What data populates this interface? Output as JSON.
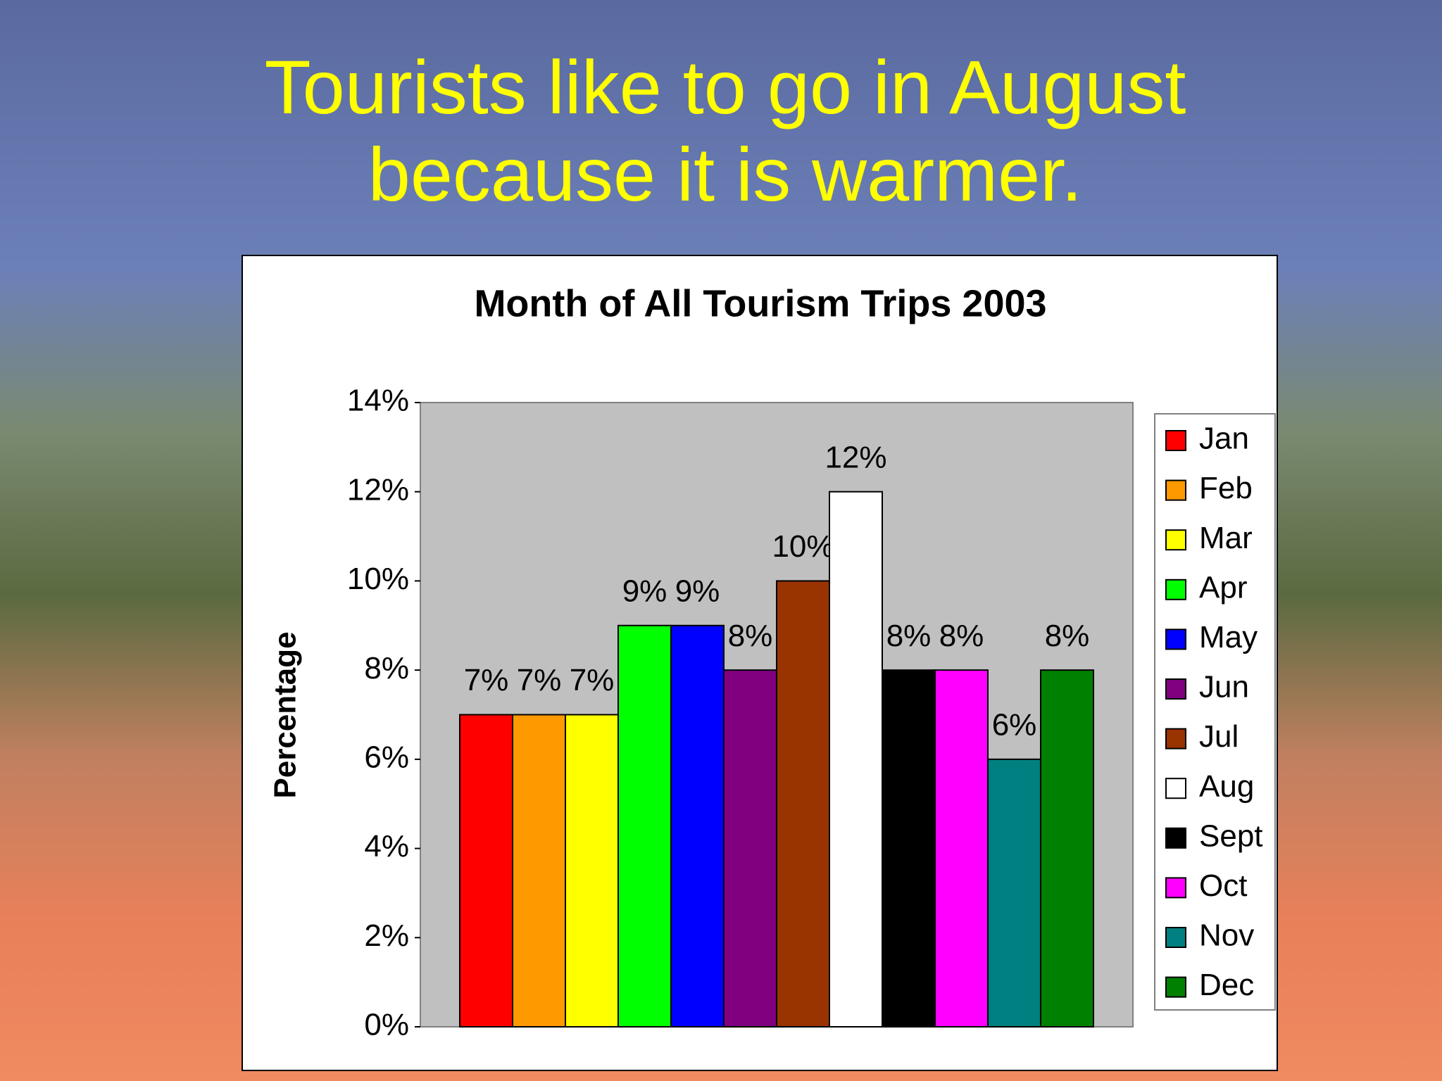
{
  "slide_title": "Tourists like to go in August because it is warmer.",
  "chart_data": {
    "type": "bar",
    "title": "Month of All Tourism Trips 2003",
    "y_label": "Percentage",
    "categories": [
      "Jan",
      "Feb",
      "Mar",
      "Apr",
      "May",
      "Jun",
      "Jul",
      "Aug",
      "Sept",
      "Oct",
      "Nov",
      "Dec"
    ],
    "values": [
      7,
      7,
      7,
      9,
      9,
      8,
      10,
      12,
      8,
      8,
      6,
      8
    ],
    "value_labels": [
      "7%",
      "7%",
      "7%",
      "9%",
      "9%",
      "8%",
      "10%",
      "12%",
      "8%",
      "8%",
      "6%",
      "8%"
    ],
    "colors": [
      "#ff0000",
      "#ff9900",
      "#ffff00",
      "#00ff00",
      "#0000ff",
      "#800080",
      "#993300",
      "#ffffff",
      "#000000",
      "#ff00ff",
      "#008080",
      "#008000"
    ],
    "ylim": [
      0,
      14
    ],
    "yticks": [
      {
        "value": 0,
        "label": "0%"
      },
      {
        "value": 2,
        "label": "2%"
      },
      {
        "value": 4,
        "label": "4%"
      },
      {
        "value": 6,
        "label": "6%"
      },
      {
        "value": 8,
        "label": "8%"
      },
      {
        "value": 10,
        "label": "10%"
      },
      {
        "value": 12,
        "label": "12%"
      },
      {
        "value": 14,
        "label": "14%"
      }
    ],
    "legend": "right"
  }
}
